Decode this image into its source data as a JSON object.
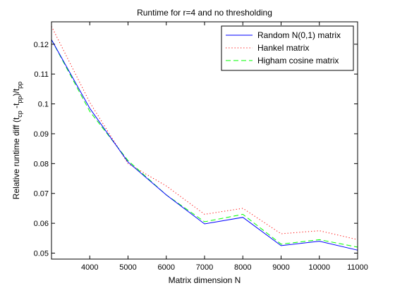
{
  "chart_data": {
    "type": "line",
    "title": "Runtime for r=4 and no thresholding",
    "xlabel": "Matrix dimension N",
    "ylabel": {
      "prefix": "Relative runtime diff (t",
      "sub1": "cp",
      "middle": " -t",
      "sub2": "pp",
      "suffix": ")/t",
      "sub3": "pp"
    },
    "xlim": [
      3000,
      11000
    ],
    "ylim": [
      0.048,
      0.1275
    ],
    "xticks": [
      4000,
      5000,
      6000,
      7000,
      8000,
      9000,
      10000,
      11000
    ],
    "yticks": [
      0.05,
      0.06,
      0.07,
      0.08,
      0.09,
      0.1,
      0.11,
      0.12
    ],
    "ytick_labels": [
      "0.05",
      "0.06",
      "0.07",
      "0.08",
      "0.09",
      "0.1",
      "0.11",
      "0.12"
    ],
    "grid": false,
    "legend_position": "top-right",
    "x": [
      3000,
      4000,
      5000,
      6000,
      7000,
      8000,
      9000,
      10000,
      11000
    ],
    "series": [
      {
        "name": "Random N(0,1) matrix",
        "color": "#0000ff",
        "style": "solid",
        "values": [
          0.1215,
          0.0985,
          0.0805,
          0.0695,
          0.0598,
          0.062,
          0.0525,
          0.054,
          0.051
        ]
      },
      {
        "name": "Hankel matrix",
        "color": "#ff0000",
        "style": "dotted",
        "values": [
          0.126,
          0.1005,
          0.08,
          0.0725,
          0.063,
          0.065,
          0.0565,
          0.0575,
          0.0545
        ]
      },
      {
        "name": "Higham cosine matrix",
        "color": "#00ff00",
        "style": "dashed",
        "values": [
          0.1215,
          0.0975,
          0.081,
          0.0695,
          0.0605,
          0.063,
          0.053,
          0.0545,
          0.052
        ]
      }
    ]
  }
}
